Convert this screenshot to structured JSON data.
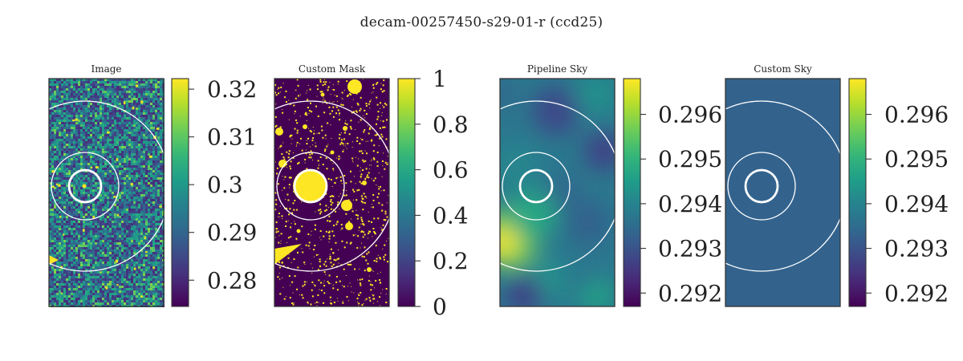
{
  "suptitle": "decam-00257450-s29-01-r (ccd25)",
  "colormap": "viridis",
  "circle_color": "#ffffff",
  "chart_data": [
    {
      "type": "heatmap",
      "title": "Image",
      "pattern": "noisy-image",
      "colorbar": {
        "ticks": [
          0.28,
          0.29,
          0.3,
          0.31,
          0.32
        ],
        "tick_labels": [
          "0.28",
          "0.29",
          "0.3",
          "0.31",
          "0.32"
        ],
        "vmin": 0.2745,
        "vmax": 0.3222
      }
    },
    {
      "type": "heatmap",
      "title": "Custom Mask",
      "pattern": "binary-mask",
      "colorbar": {
        "ticks": [
          0,
          0.2,
          0.4,
          0.6,
          0.8,
          1
        ],
        "tick_labels": [
          "0",
          "0.2",
          "0.4",
          "0.6",
          "0.8",
          "1"
        ],
        "vmin": 0,
        "vmax": 1
      }
    },
    {
      "type": "heatmap",
      "title": "Pipeline Sky",
      "pattern": "smooth-sky",
      "colorbar": {
        "ticks": [
          0.292,
          0.293,
          0.294,
          0.295,
          0.296
        ],
        "tick_labels": [
          "0.292",
          "0.293",
          "0.294",
          "0.295",
          "0.296"
        ],
        "vmin": 0.2917,
        "vmax": 0.2968
      }
    },
    {
      "type": "heatmap",
      "title": "Custom Sky",
      "pattern": "constant",
      "constant_color": "#33638d",
      "colorbar": {
        "ticks": [
          0.292,
          0.293,
          0.294,
          0.295,
          0.296
        ],
        "tick_labels": [
          "0.292",
          "0.293",
          "0.294",
          "0.295",
          "0.296"
        ],
        "vmin": 0.2917,
        "vmax": 0.2968
      }
    }
  ]
}
